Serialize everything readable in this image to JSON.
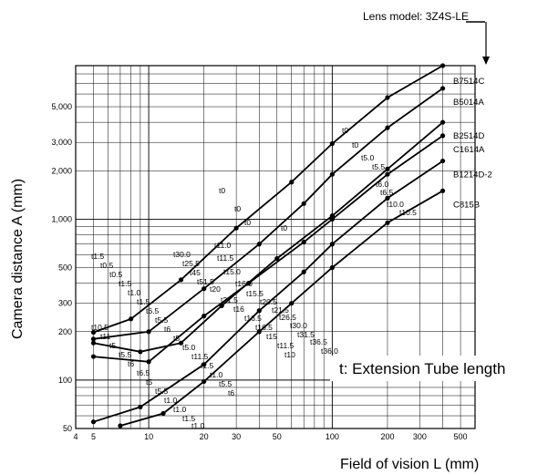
{
  "header": {
    "lens_model": "Lens model: 3Z4S-LE"
  },
  "note": "t: Extension Tube length",
  "colors": {
    "line": "#000000",
    "grid": "#000000",
    "background": "#ffffff"
  },
  "chart_data": {
    "type": "line",
    "xlabel": "Field of vision L (mm)",
    "ylabel": "Camera distance A (mm)",
    "xscale": "log",
    "yscale": "log",
    "xlim": [
      4,
      600
    ],
    "ylim": [
      50,
      9000
    ],
    "grid": true,
    "x_ticks": [
      4,
      5,
      10,
      20,
      30,
      50,
      100,
      200,
      300,
      500
    ],
    "y_ticks": [
      50,
      100,
      200,
      300,
      500,
      1000,
      2000,
      3000,
      5000
    ],
    "y_tick_labels": [
      "50",
      "100",
      "200",
      "300",
      "500",
      "1,000",
      "2,000",
      "3,000",
      "5,000"
    ],
    "series": [
      {
        "name": "B7514C",
        "points": [
          [
            5,
            198
          ],
          [
            8,
            240
          ],
          [
            15,
            420
          ],
          [
            30,
            880
          ],
          [
            60,
            1700
          ],
          [
            100,
            2950
          ],
          [
            200,
            5700
          ],
          [
            400,
            9000
          ]
        ]
      },
      {
        "name": "B5014A",
        "points": [
          [
            5,
            180
          ],
          [
            10,
            200
          ],
          [
            20,
            370
          ],
          [
            40,
            700
          ],
          [
            70,
            1250
          ],
          [
            100,
            1900
          ],
          [
            200,
            3700
          ],
          [
            400,
            6500
          ]
        ]
      },
      {
        "name": "B2514D",
        "points": [
          [
            5,
            170
          ],
          [
            9,
            150
          ],
          [
            15,
            170
          ],
          [
            25,
            290
          ],
          [
            50,
            570
          ],
          [
            100,
            1050
          ],
          [
            200,
            2050
          ],
          [
            400,
            4000
          ]
        ]
      },
      {
        "name": "C1614A",
        "points": [
          [
            5,
            140
          ],
          [
            10,
            130
          ],
          [
            20,
            250
          ],
          [
            35,
            400
          ],
          [
            70,
            720
          ],
          [
            100,
            1000
          ],
          [
            200,
            1900
          ],
          [
            400,
            3300
          ]
        ]
      },
      {
        "name": "B1214D-2",
        "points": [
          [
            5,
            55
          ],
          [
            9,
            68
          ],
          [
            20,
            125
          ],
          [
            40,
            270
          ],
          [
            70,
            470
          ],
          [
            100,
            700
          ],
          [
            200,
            1350
          ],
          [
            400,
            2300
          ]
        ]
      },
      {
        "name": "C815B",
        "points": [
          [
            7,
            52
          ],
          [
            12,
            62
          ],
          [
            20,
            98
          ],
          [
            40,
            200
          ],
          [
            60,
            300
          ],
          [
            100,
            500
          ],
          [
            200,
            950
          ],
          [
            400,
            1500
          ]
        ]
      }
    ],
    "annotations": [
      "t0",
      "t0",
      "t0",
      "t0",
      "t0",
      "t0",
      "t5.0",
      "t5.5",
      "t6.0",
      "t6.5",
      "t10.0",
      "t10.5",
      "t11.0",
      "t11.5",
      "t15.0",
      "t16.0",
      "t15.5",
      "t20.5",
      "t21.5",
      "t26.5",
      "t30.0",
      "t31.5",
      "t36.5",
      "t36.0",
      "t30.0",
      "t25.5",
      "t45",
      "t51.5",
      "t20",
      "t21.5",
      "t16",
      "t16.5",
      "t16.5",
      "t15",
      "t11.5",
      "t10",
      "t10.5",
      "t11",
      "t5",
      "t5.5",
      "t6",
      "t6.5",
      "t5",
      "t5.5",
      "t1.0",
      "t1.0",
      "t1.5",
      "t1.0",
      "t1.5",
      "t0.5",
      "t0.5",
      "t1.5",
      "t1.0",
      "t1.5",
      "t6.5",
      "t5.5",
      "t6",
      "t5",
      "t5.0",
      "t11.5",
      "t1.5",
      "t1.0",
      "t5.5",
      "t6"
    ]
  }
}
